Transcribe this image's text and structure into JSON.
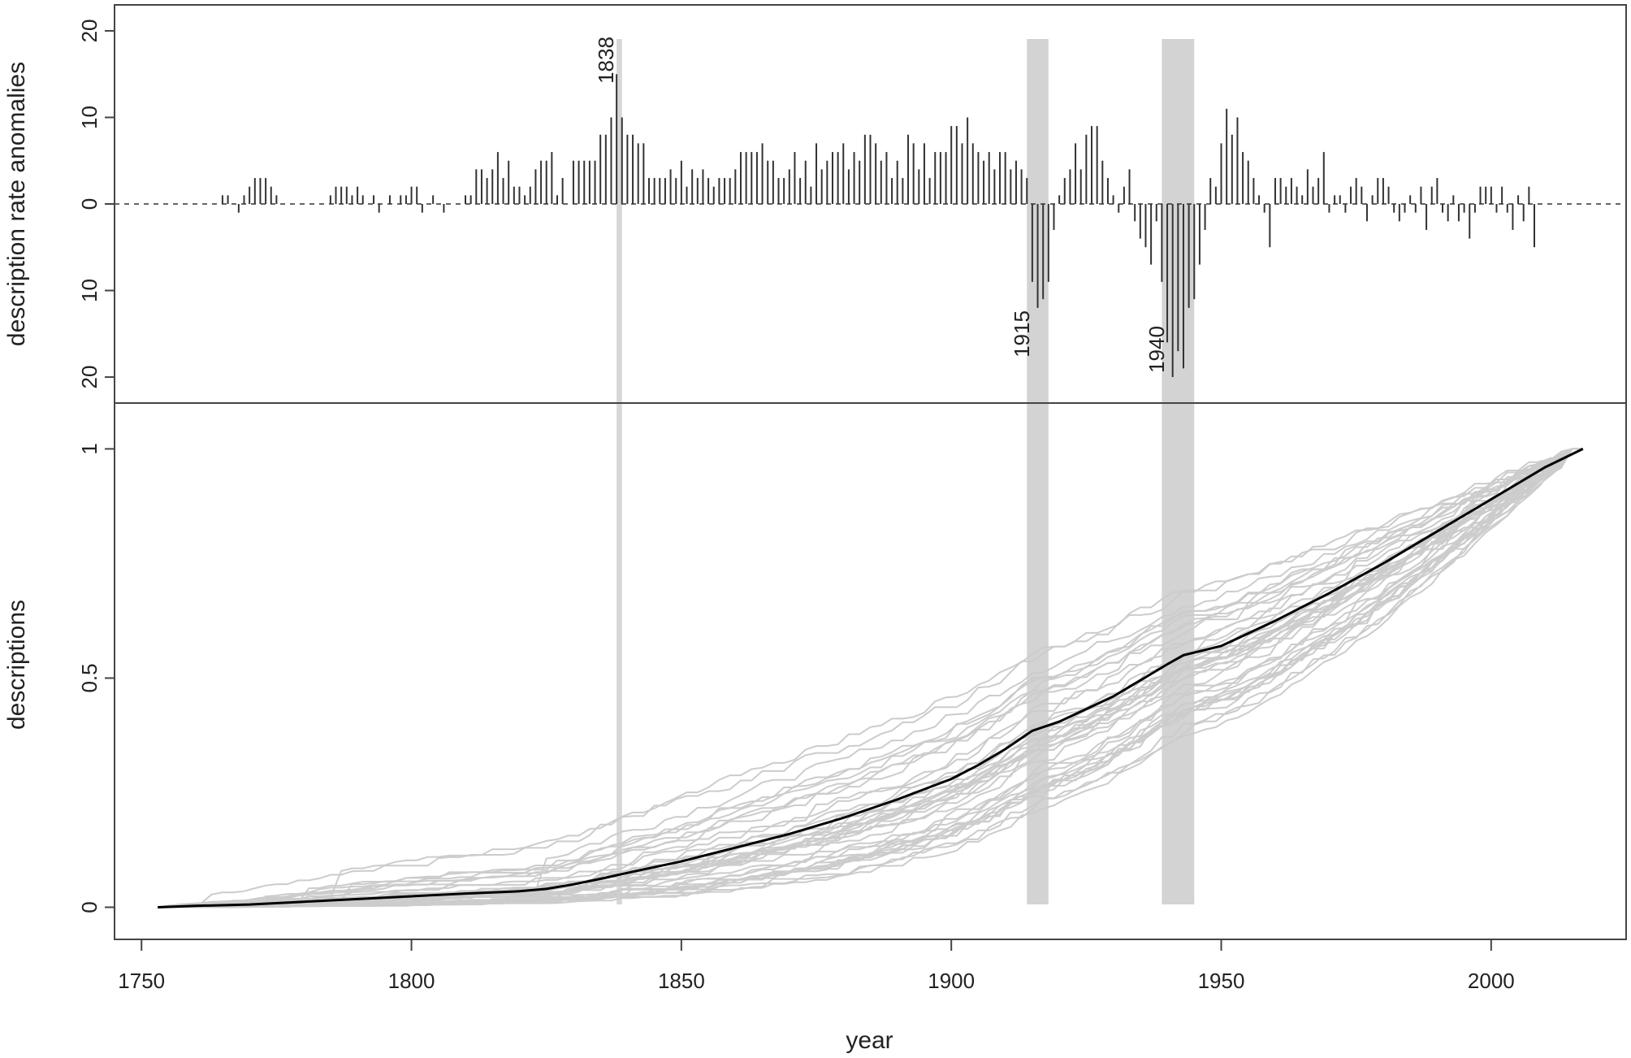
{
  "chart_data": [
    {
      "panel": "top",
      "type": "bar",
      "ylabel": "description rate anomalies",
      "xlim": [
        1745,
        2025
      ],
      "ylim": [
        -23,
        23
      ],
      "y_ticks": [
        {
          "value": 20,
          "label": "20"
        },
        {
          "value": 10,
          "label": "10"
        },
        {
          "value": 0,
          "label": "0"
        },
        {
          "value": -10,
          "label": "10"
        },
        {
          "value": -20,
          "label": "20"
        }
      ],
      "zero_line": "dashed",
      "annotations": [
        {
          "label": "1838",
          "x": 1838,
          "y": 15
        },
        {
          "label": "1915",
          "x": 1915,
          "y": -12
        },
        {
          "label": "1940",
          "x": 1940,
          "y": -16
        }
      ],
      "highlight_bands": [
        {
          "start": 1838,
          "end": 1839
        },
        {
          "start": 1914,
          "end": 1918
        },
        {
          "start": 1939,
          "end": 1945
        }
      ],
      "bars": [
        [
          1765,
          1
        ],
        [
          1766,
          1
        ],
        [
          1768,
          -1
        ],
        [
          1769,
          1
        ],
        [
          1770,
          2
        ],
        [
          1771,
          3
        ],
        [
          1772,
          3
        ],
        [
          1773,
          3
        ],
        [
          1774,
          2
        ],
        [
          1775,
          1
        ],
        [
          1785,
          1
        ],
        [
          1786,
          2
        ],
        [
          1787,
          2
        ],
        [
          1788,
          2
        ],
        [
          1789,
          1
        ],
        [
          1790,
          2
        ],
        [
          1791,
          1
        ],
        [
          1793,
          1
        ],
        [
          1794,
          -1
        ],
        [
          1796,
          1
        ],
        [
          1798,
          1
        ],
        [
          1799,
          1
        ],
        [
          1800,
          2
        ],
        [
          1801,
          2
        ],
        [
          1802,
          -1
        ],
        [
          1804,
          1
        ],
        [
          1806,
          -1
        ],
        [
          1810,
          1
        ],
        [
          1811,
          1
        ],
        [
          1812,
          4
        ],
        [
          1813,
          4
        ],
        [
          1814,
          3
        ],
        [
          1815,
          4
        ],
        [
          1816,
          6
        ],
        [
          1817,
          3
        ],
        [
          1818,
          5
        ],
        [
          1819,
          2
        ],
        [
          1820,
          2
        ],
        [
          1821,
          1
        ],
        [
          1822,
          2
        ],
        [
          1823,
          4
        ],
        [
          1824,
          5
        ],
        [
          1825,
          5
        ],
        [
          1826,
          6
        ],
        [
          1827,
          1
        ],
        [
          1828,
          3
        ],
        [
          1830,
          5
        ],
        [
          1831,
          5
        ],
        [
          1832,
          5
        ],
        [
          1833,
          5
        ],
        [
          1834,
          5
        ],
        [
          1835,
          8
        ],
        [
          1836,
          8
        ],
        [
          1837,
          10
        ],
        [
          1838,
          15
        ],
        [
          1839,
          10
        ],
        [
          1840,
          8
        ],
        [
          1841,
          8
        ],
        [
          1842,
          7
        ],
        [
          1843,
          7
        ],
        [
          1844,
          3
        ],
        [
          1845,
          3
        ],
        [
          1846,
          3
        ],
        [
          1847,
          3
        ],
        [
          1848,
          4
        ],
        [
          1849,
          3
        ],
        [
          1850,
          5
        ],
        [
          1851,
          2
        ],
        [
          1852,
          4
        ],
        [
          1853,
          3
        ],
        [
          1854,
          4
        ],
        [
          1855,
          3
        ],
        [
          1856,
          2
        ],
        [
          1857,
          3
        ],
        [
          1858,
          3
        ],
        [
          1859,
          3
        ],
        [
          1860,
          4
        ],
        [
          1861,
          6
        ],
        [
          1862,
          6
        ],
        [
          1863,
          6
        ],
        [
          1864,
          6
        ],
        [
          1865,
          7
        ],
        [
          1866,
          5
        ],
        [
          1867,
          5
        ],
        [
          1868,
          3
        ],
        [
          1869,
          3
        ],
        [
          1870,
          4
        ],
        [
          1871,
          6
        ],
        [
          1872,
          3
        ],
        [
          1873,
          5
        ],
        [
          1874,
          2
        ],
        [
          1875,
          7
        ],
        [
          1876,
          4
        ],
        [
          1877,
          5
        ],
        [
          1878,
          6
        ],
        [
          1879,
          6
        ],
        [
          1880,
          7
        ],
        [
          1881,
          4
        ],
        [
          1882,
          6
        ],
        [
          1883,
          5
        ],
        [
          1884,
          8
        ],
        [
          1885,
          8
        ],
        [
          1886,
          7
        ],
        [
          1887,
          5
        ],
        [
          1888,
          6
        ],
        [
          1889,
          3
        ],
        [
          1890,
          5
        ],
        [
          1891,
          3
        ],
        [
          1892,
          8
        ],
        [
          1893,
          7
        ],
        [
          1894,
          4
        ],
        [
          1895,
          7
        ],
        [
          1896,
          3
        ],
        [
          1897,
          6
        ],
        [
          1898,
          6
        ],
        [
          1899,
          6
        ],
        [
          1900,
          9
        ],
        [
          1901,
          9
        ],
        [
          1902,
          7
        ],
        [
          1903,
          10
        ],
        [
          1904,
          7
        ],
        [
          1905,
          6
        ],
        [
          1906,
          5
        ],
        [
          1907,
          6
        ],
        [
          1908,
          4
        ],
        [
          1909,
          6
        ],
        [
          1910,
          6
        ],
        [
          1911,
          4
        ],
        [
          1912,
          5
        ],
        [
          1913,
          4
        ],
        [
          1914,
          3
        ],
        [
          1915,
          -9
        ],
        [
          1916,
          -12
        ],
        [
          1917,
          -11
        ],
        [
          1918,
          -9
        ],
        [
          1919,
          -3
        ],
        [
          1920,
          1
        ],
        [
          1921,
          3
        ],
        [
          1922,
          4
        ],
        [
          1923,
          7
        ],
        [
          1924,
          4
        ],
        [
          1925,
          8
        ],
        [
          1926,
          9
        ],
        [
          1927,
          9
        ],
        [
          1928,
          5
        ],
        [
          1929,
          3
        ],
        [
          1930,
          1
        ],
        [
          1931,
          -1
        ],
        [
          1932,
          2
        ],
        [
          1933,
          4
        ],
        [
          1934,
          -2
        ],
        [
          1935,
          -4
        ],
        [
          1936,
          -5
        ],
        [
          1937,
          -7
        ],
        [
          1938,
          -2
        ],
        [
          1939,
          -9
        ],
        [
          1940,
          -16
        ],
        [
          1941,
          -20
        ],
        [
          1942,
          -17
        ],
        [
          1943,
          -19
        ],
        [
          1944,
          -12
        ],
        [
          1945,
          -11
        ],
        [
          1946,
          -7
        ],
        [
          1947,
          -3
        ],
        [
          1948,
          3
        ],
        [
          1949,
          2
        ],
        [
          1950,
          7
        ],
        [
          1951,
          11
        ],
        [
          1952,
          8
        ],
        [
          1953,
          10
        ],
        [
          1954,
          6
        ],
        [
          1955,
          5
        ],
        [
          1956,
          3
        ],
        [
          1957,
          1
        ],
        [
          1958,
          -1
        ],
        [
          1959,
          -5
        ],
        [
          1960,
          3
        ],
        [
          1961,
          3
        ],
        [
          1962,
          2
        ],
        [
          1963,
          3
        ],
        [
          1964,
          2
        ],
        [
          1965,
          1
        ],
        [
          1966,
          4
        ],
        [
          1967,
          2
        ],
        [
          1968,
          3
        ],
        [
          1969,
          6
        ],
        [
          1970,
          -1
        ],
        [
          1971,
          1
        ],
        [
          1972,
          1
        ],
        [
          1973,
          -1
        ],
        [
          1974,
          2
        ],
        [
          1975,
          3
        ],
        [
          1976,
          2
        ],
        [
          1977,
          -2
        ],
        [
          1978,
          1
        ],
        [
          1979,
          3
        ],
        [
          1980,
          3
        ],
        [
          1981,
          2
        ],
        [
          1982,
          -1
        ],
        [
          1983,
          -2
        ],
        [
          1984,
          -1
        ],
        [
          1985,
          1
        ],
        [
          1986,
          -1
        ],
        [
          1987,
          2
        ],
        [
          1988,
          -3
        ],
        [
          1989,
          2
        ],
        [
          1990,
          3
        ],
        [
          1991,
          -1
        ],
        [
          1992,
          -2
        ],
        [
          1993,
          1
        ],
        [
          1994,
          -2
        ],
        [
          1995,
          -1
        ],
        [
          1996,
          -4
        ],
        [
          1997,
          -1
        ],
        [
          1998,
          2
        ],
        [
          1999,
          2
        ],
        [
          2000,
          2
        ],
        [
          2001,
          -1
        ],
        [
          2002,
          2
        ],
        [
          2003,
          -1
        ],
        [
          2004,
          -3
        ],
        [
          2005,
          1
        ],
        [
          2006,
          -2
        ],
        [
          2007,
          2
        ],
        [
          2008,
          -5
        ]
      ]
    },
    {
      "panel": "bottom",
      "type": "line",
      "xlabel": "year",
      "ylabel": "descriptions",
      "xlim": [
        1745,
        2025
      ],
      "ylim": [
        -0.07,
        1.1
      ],
      "x_ticks": [
        {
          "value": 1750,
          "label": "1750"
        },
        {
          "value": 1800,
          "label": "1800"
        },
        {
          "value": 1850,
          "label": "1850"
        },
        {
          "value": 1900,
          "label": "1900"
        },
        {
          "value": 1950,
          "label": "1950"
        },
        {
          "value": 2000,
          "label": "2000"
        }
      ],
      "y_ticks": [
        {
          "value": 0,
          "label": "0"
        },
        {
          "value": 0.5,
          "label": "0.5"
        },
        {
          "value": 1,
          "label": "1"
        }
      ],
      "background_series_count": 40,
      "background_color": "#cccccc",
      "series": [
        {
          "color": "#000000",
          "x": [
            1753,
            1760,
            1770,
            1780,
            1790,
            1800,
            1810,
            1820,
            1825,
            1830,
            1835,
            1840,
            1850,
            1860,
            1870,
            1880,
            1890,
            1900,
            1905,
            1910,
            1915,
            1920,
            1930,
            1940,
            1943,
            1950,
            1960,
            1970,
            1980,
            1990,
            2000,
            2010,
            2017
          ],
          "y": [
            0,
            0.003,
            0.006,
            0.012,
            0.018,
            0.024,
            0.03,
            0.035,
            0.04,
            0.05,
            0.062,
            0.075,
            0.1,
            0.13,
            0.16,
            0.195,
            0.235,
            0.28,
            0.31,
            0.345,
            0.385,
            0.405,
            0.46,
            0.53,
            0.55,
            0.57,
            0.625,
            0.685,
            0.75,
            0.82,
            0.89,
            0.96,
            1.0
          ]
        }
      ]
    }
  ]
}
